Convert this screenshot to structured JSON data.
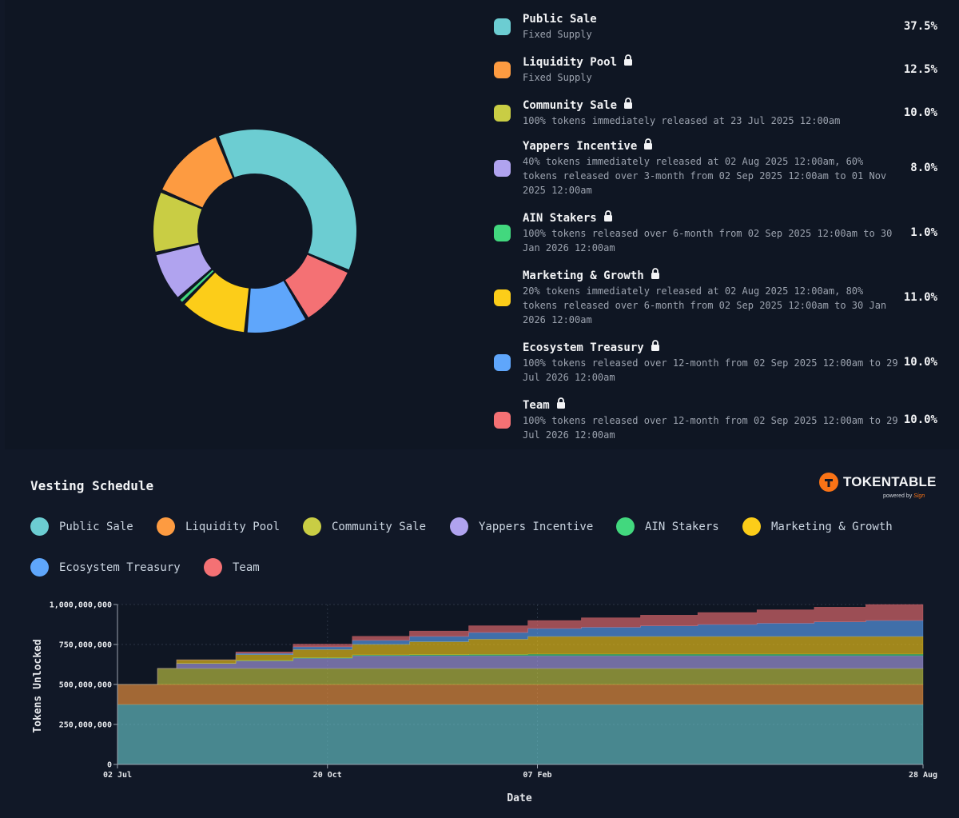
{
  "allocations": [
    {
      "name": "Public Sale",
      "locked": false,
      "desc": "Fixed Supply",
      "pct_label": "37.5%",
      "pct": 37.5,
      "color": "#6ccdd2"
    },
    {
      "name": "Liquidity Pool",
      "locked": true,
      "desc": "Fixed Supply",
      "pct_label": "12.5%",
      "pct": 12.5,
      "color": "#fd9b41"
    },
    {
      "name": "Community Sale",
      "locked": true,
      "desc": "100% tokens immediately released at 23 Jul 2025 12:00am",
      "pct_label": "10.0%",
      "pct": 10.0,
      "color": "#c9cd44"
    },
    {
      "name": "Yappers Incentive",
      "locked": true,
      "desc": "40% tokens immediately released at 02 Aug 2025 12:00am, 60% tokens released over 3-month from 02 Sep 2025 12:00am to 01 Nov 2025 12:00am",
      "pct_label": "8.0%",
      "pct": 8.0,
      "color": "#b0a3ef"
    },
    {
      "name": "AIN Stakers",
      "locked": true,
      "desc": "100% tokens released over 6-month from 02 Sep 2025 12:00am to 30 Jan 2026 12:00am",
      "pct_label": "1.0%",
      "pct": 1.0,
      "color": "#42d87e"
    },
    {
      "name": "Marketing & Growth",
      "locked": true,
      "desc": "20% tokens immediately released at 02 Aug 2025 12:00am, 80% tokens released over 6-month from 02 Sep 2025 12:00am to 30 Jan 2026 12:00am",
      "pct_label": "11.0%",
      "pct": 11.0,
      "color": "#fccd19"
    },
    {
      "name": "Ecosystem Treasury",
      "locked": true,
      "desc": "100% tokens released over 12-month from 02 Sep 2025 12:00am to 29 Jul 2026 12:00am",
      "pct_label": "10.0%",
      "pct": 10.0,
      "color": "#5fa6fb"
    },
    {
      "name": "Team",
      "locked": true,
      "desc": "100% tokens released over 12-month from 02 Sep 2025 12:00am to 29 Jul 2026 12:00am",
      "pct_label": "10.0%",
      "pct": 10.0,
      "color": "#f47174"
    }
  ],
  "vesting": {
    "title": "Vesting Schedule",
    "brand": {
      "name": "TOKENTABLE",
      "sub": "powered by",
      "sub_mark": "Sign"
    }
  },
  "chart_data": [
    {
      "type": "pie",
      "variant": "donut",
      "categories": [
        "Public Sale",
        "Liquidity Pool",
        "Community Sale",
        "Yappers Incentive",
        "AIN Stakers",
        "Marketing & Growth",
        "Ecosystem Treasury",
        "Team"
      ],
      "values": [
        37.5,
        12.5,
        10.0,
        8.0,
        1.0,
        11.0,
        10.0,
        10.0
      ],
      "colors": [
        "#6ccdd2",
        "#fd9b41",
        "#c9cd44",
        "#b0a3ef",
        "#42d87e",
        "#fccd19",
        "#5fa6fb",
        "#f47174"
      ],
      "order_clockwise": [
        "Public Sale",
        "Team",
        "Ecosystem Treasury",
        "Marketing & Growth",
        "AIN Stakers",
        "Yappers Incentive",
        "Community Sale",
        "Liquidity Pool"
      ]
    },
    {
      "type": "area",
      "stacked": true,
      "step": true,
      "xlabel": "Date",
      "ylabel": "Tokens Unlocked",
      "x_ticks": [
        "02 Jul",
        "20 Oct",
        "07 Feb",
        "28 Aug"
      ],
      "y_ticks": [
        "0",
        "250,000,000",
        "500,000,000",
        "750,000,000",
        "1,000,000,000"
      ],
      "ylim": [
        0,
        1000000000
      ],
      "x": [
        "2025-07-02",
        "2025-07-23",
        "2025-08-02",
        "2025-09-02",
        "2025-10-02",
        "2025-11-02",
        "2025-12-02",
        "2026-01-02",
        "2026-02-02",
        "2026-03-02",
        "2026-04-02",
        "2026-05-02",
        "2026-06-02",
        "2026-07-02",
        "2026-07-29",
        "2026-08-28"
      ],
      "series": [
        {
          "name": "Public Sale",
          "color": "#6ccdd2",
          "values": [
            375000000,
            375000000,
            375000000,
            375000000,
            375000000,
            375000000,
            375000000,
            375000000,
            375000000,
            375000000,
            375000000,
            375000000,
            375000000,
            375000000,
            375000000,
            375000000
          ]
        },
        {
          "name": "Liquidity Pool",
          "color": "#fd9b41",
          "values": [
            125000000,
            125000000,
            125000000,
            125000000,
            125000000,
            125000000,
            125000000,
            125000000,
            125000000,
            125000000,
            125000000,
            125000000,
            125000000,
            125000000,
            125000000,
            125000000
          ]
        },
        {
          "name": "Community Sale",
          "color": "#c9cd44",
          "values": [
            0,
            100000000,
            100000000,
            100000000,
            100000000,
            100000000,
            100000000,
            100000000,
            100000000,
            100000000,
            100000000,
            100000000,
            100000000,
            100000000,
            100000000,
            100000000
          ]
        },
        {
          "name": "Yappers Incentive",
          "color": "#b0a3ef",
          "values": [
            0,
            0,
            32000000,
            48000000,
            64000000,
            80000000,
            80000000,
            80000000,
            80000000,
            80000000,
            80000000,
            80000000,
            80000000,
            80000000,
            80000000,
            80000000
          ]
        },
        {
          "name": "AIN Stakers",
          "color": "#42d87e",
          "values": [
            0,
            0,
            0,
            1700000,
            3300000,
            5000000,
            6700000,
            8300000,
            10000000,
            10000000,
            10000000,
            10000000,
            10000000,
            10000000,
            10000000,
            10000000
          ]
        },
        {
          "name": "Marketing & Growth",
          "color": "#fccd19",
          "values": [
            0,
            0,
            22000000,
            36700000,
            51300000,
            66000000,
            80700000,
            95300000,
            110000000,
            110000000,
            110000000,
            110000000,
            110000000,
            110000000,
            110000000,
            110000000
          ]
        },
        {
          "name": "Ecosystem Treasury",
          "color": "#5fa6fb",
          "values": [
            0,
            0,
            0,
            8300000,
            16700000,
            25000000,
            33300000,
            41700000,
            50000000,
            58300000,
            66700000,
            75000000,
            83300000,
            91700000,
            100000000,
            100000000
          ]
        },
        {
          "name": "Team",
          "color": "#f47174",
          "values": [
            0,
            0,
            0,
            8300000,
            16700000,
            25000000,
            33300000,
            41700000,
            50000000,
            58300000,
            66700000,
            75000000,
            83300000,
            91700000,
            100000000,
            100000000
          ]
        }
      ]
    }
  ]
}
